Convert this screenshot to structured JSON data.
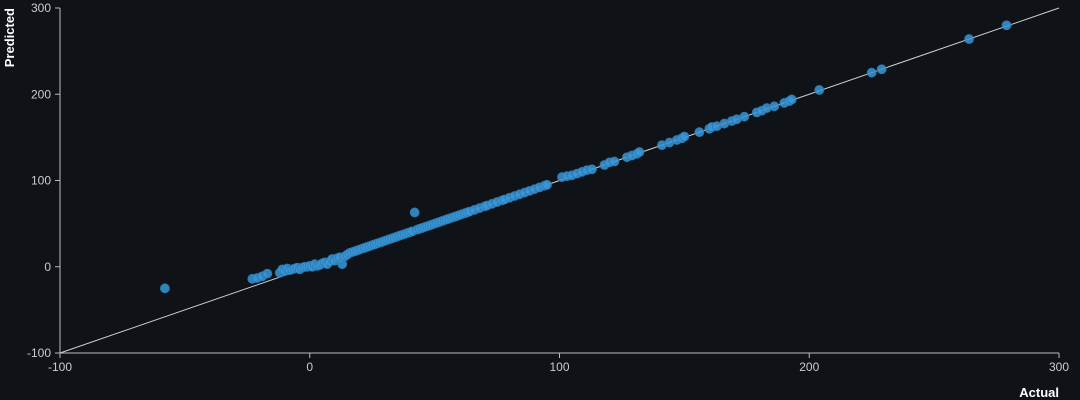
{
  "chart_data": {
    "type": "scatter",
    "title": "",
    "xlabel": "Actual",
    "ylabel": "Predicted",
    "xlim": [
      -100,
      300
    ],
    "ylim": [
      -100,
      300
    ],
    "x_ticks": [
      "-100",
      "0",
      "100",
      "200",
      "300"
    ],
    "y_ticks": [
      "-100",
      "0",
      "100",
      "200",
      "300"
    ],
    "x_tick_values": [
      -100,
      0,
      100,
      200,
      300
    ],
    "y_tick_values": [
      -100,
      0,
      100,
      200,
      300
    ],
    "grid": false,
    "legend": "none",
    "reference_line": {
      "from": [
        -100,
        -100
      ],
      "to": [
        300,
        300
      ]
    },
    "point_color": "#3a97d6",
    "background_color": "#0f1216",
    "series": [
      {
        "points": [
          [
            -58,
            -25
          ],
          [
            -23,
            -14
          ],
          [
            -21,
            -13
          ],
          [
            -19,
            -11
          ],
          [
            -17,
            -8
          ],
          [
            -12,
            -7
          ],
          [
            -11,
            -3
          ],
          [
            -10,
            -5
          ],
          [
            -9,
            -2
          ],
          [
            -8,
            -4
          ],
          [
            -7,
            -3
          ],
          [
            -6,
            -2
          ],
          [
            -5,
            -1
          ],
          [
            -4,
            -3
          ],
          [
            -3,
            -1
          ],
          [
            -2,
            0
          ],
          [
            -1,
            0
          ],
          [
            0,
            1
          ],
          [
            1,
            0
          ],
          [
            2,
            3
          ],
          [
            3,
            1
          ],
          [
            4,
            2
          ],
          [
            5,
            4
          ],
          [
            6,
            5
          ],
          [
            7,
            3
          ],
          [
            8,
            6
          ],
          [
            9,
            9
          ],
          [
            10,
            7
          ],
          [
            11,
            10
          ],
          [
            12,
            11
          ],
          [
            13,
            3
          ],
          [
            14,
            12
          ],
          [
            15,
            14
          ],
          [
            16,
            16
          ],
          [
            17,
            17
          ],
          [
            18,
            18
          ],
          [
            19,
            19
          ],
          [
            20,
            20
          ],
          [
            21,
            21
          ],
          [
            22,
            22
          ],
          [
            23,
            23
          ],
          [
            24,
            24
          ],
          [
            25,
            25
          ],
          [
            26,
            26
          ],
          [
            27,
            27
          ],
          [
            28,
            28
          ],
          [
            29,
            29
          ],
          [
            30,
            30
          ],
          [
            31,
            31
          ],
          [
            32,
            32
          ],
          [
            33,
            33
          ],
          [
            34,
            34
          ],
          [
            35,
            35
          ],
          [
            36,
            36
          ],
          [
            37,
            37
          ],
          [
            38,
            38
          ],
          [
            39,
            39
          ],
          [
            40,
            40
          ],
          [
            41,
            41
          ],
          [
            42,
            63
          ],
          [
            43,
            43
          ],
          [
            44,
            44
          ],
          [
            45,
            45
          ],
          [
            46,
            46
          ],
          [
            47,
            47
          ],
          [
            48,
            48
          ],
          [
            49,
            49
          ],
          [
            50,
            50
          ],
          [
            51,
            51
          ],
          [
            52,
            52
          ],
          [
            53,
            53
          ],
          [
            54,
            54
          ],
          [
            55,
            55
          ],
          [
            56,
            56
          ],
          [
            57,
            57
          ],
          [
            58,
            58
          ],
          [
            59,
            59
          ],
          [
            60,
            60
          ],
          [
            61,
            61
          ],
          [
            62,
            62
          ],
          [
            63,
            63
          ],
          [
            64,
            64
          ],
          [
            66,
            66
          ],
          [
            68,
            68
          ],
          [
            70,
            70
          ],
          [
            71,
            71
          ],
          [
            73,
            73
          ],
          [
            75,
            75
          ],
          [
            77,
            77
          ],
          [
            78,
            78
          ],
          [
            80,
            80
          ],
          [
            82,
            82
          ],
          [
            84,
            84
          ],
          [
            86,
            86
          ],
          [
            88,
            88
          ],
          [
            90,
            90
          ],
          [
            92,
            92
          ],
          [
            94,
            94
          ],
          [
            95,
            95
          ],
          [
            101,
            104
          ],
          [
            103,
            105
          ],
          [
            105,
            106
          ],
          [
            107,
            108
          ],
          [
            109,
            110
          ],
          [
            111,
            112
          ],
          [
            113,
            113
          ],
          [
            118,
            118
          ],
          [
            120,
            121
          ],
          [
            122,
            122
          ],
          [
            127,
            127
          ],
          [
            129,
            129
          ],
          [
            131,
            131
          ],
          [
            132,
            133
          ],
          [
            141,
            141
          ],
          [
            144,
            144
          ],
          [
            147,
            147
          ],
          [
            149,
            149
          ],
          [
            150,
            151
          ],
          [
            156,
            156
          ],
          [
            160,
            160
          ],
          [
            161,
            162
          ],
          [
            163,
            163
          ],
          [
            166,
            166
          ],
          [
            169,
            169
          ],
          [
            171,
            171
          ],
          [
            174,
            174
          ],
          [
            179,
            179
          ],
          [
            181,
            181
          ],
          [
            183,
            184
          ],
          [
            186,
            186
          ],
          [
            190,
            190
          ],
          [
            192,
            192
          ],
          [
            193,
            194
          ],
          [
            204,
            205
          ],
          [
            225,
            225
          ],
          [
            229,
            229
          ],
          [
            264,
            264
          ],
          [
            279,
            280
          ]
        ]
      }
    ]
  }
}
